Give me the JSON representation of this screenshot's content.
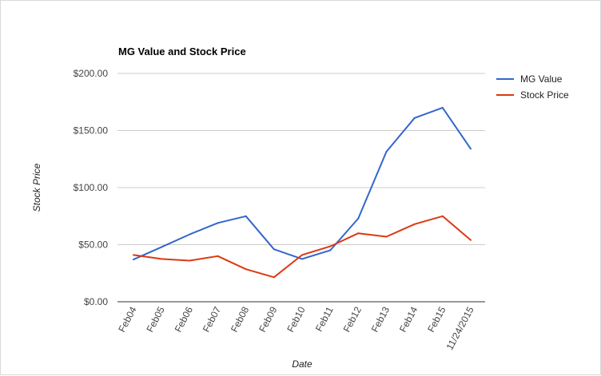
{
  "chart_data": {
    "type": "line",
    "title": "MG Value and Stock Price",
    "xlabel": "Date",
    "ylabel": "Stock Price",
    "ylim": [
      0,
      200
    ],
    "y_ticks": [
      0,
      50,
      100,
      150,
      200
    ],
    "y_tick_labels": [
      "$0.00",
      "$50.00",
      "$100.00",
      "$150.00",
      "$200.00"
    ],
    "categories": [
      "Feb04",
      "Feb05",
      "Feb06",
      "Feb07",
      "Feb08",
      "Feb09",
      "Feb10",
      "Feb11",
      "Feb12",
      "Feb13",
      "Feb14",
      "Feb15",
      "11/24/2015"
    ],
    "grid": true,
    "legend_position": "right",
    "series": [
      {
        "name": "MG Value",
        "color": "#3366cc",
        "values": [
          37,
          48,
          59,
          69,
          75,
          46,
          37.5,
          45,
          73,
          131.5,
          161,
          170,
          134
        ]
      },
      {
        "name": "Stock Price",
        "color": "#dc3912",
        "values": [
          41,
          37.5,
          36,
          40,
          28.5,
          21.5,
          41,
          48.5,
          60,
          57,
          68,
          75,
          54
        ]
      }
    ]
  }
}
